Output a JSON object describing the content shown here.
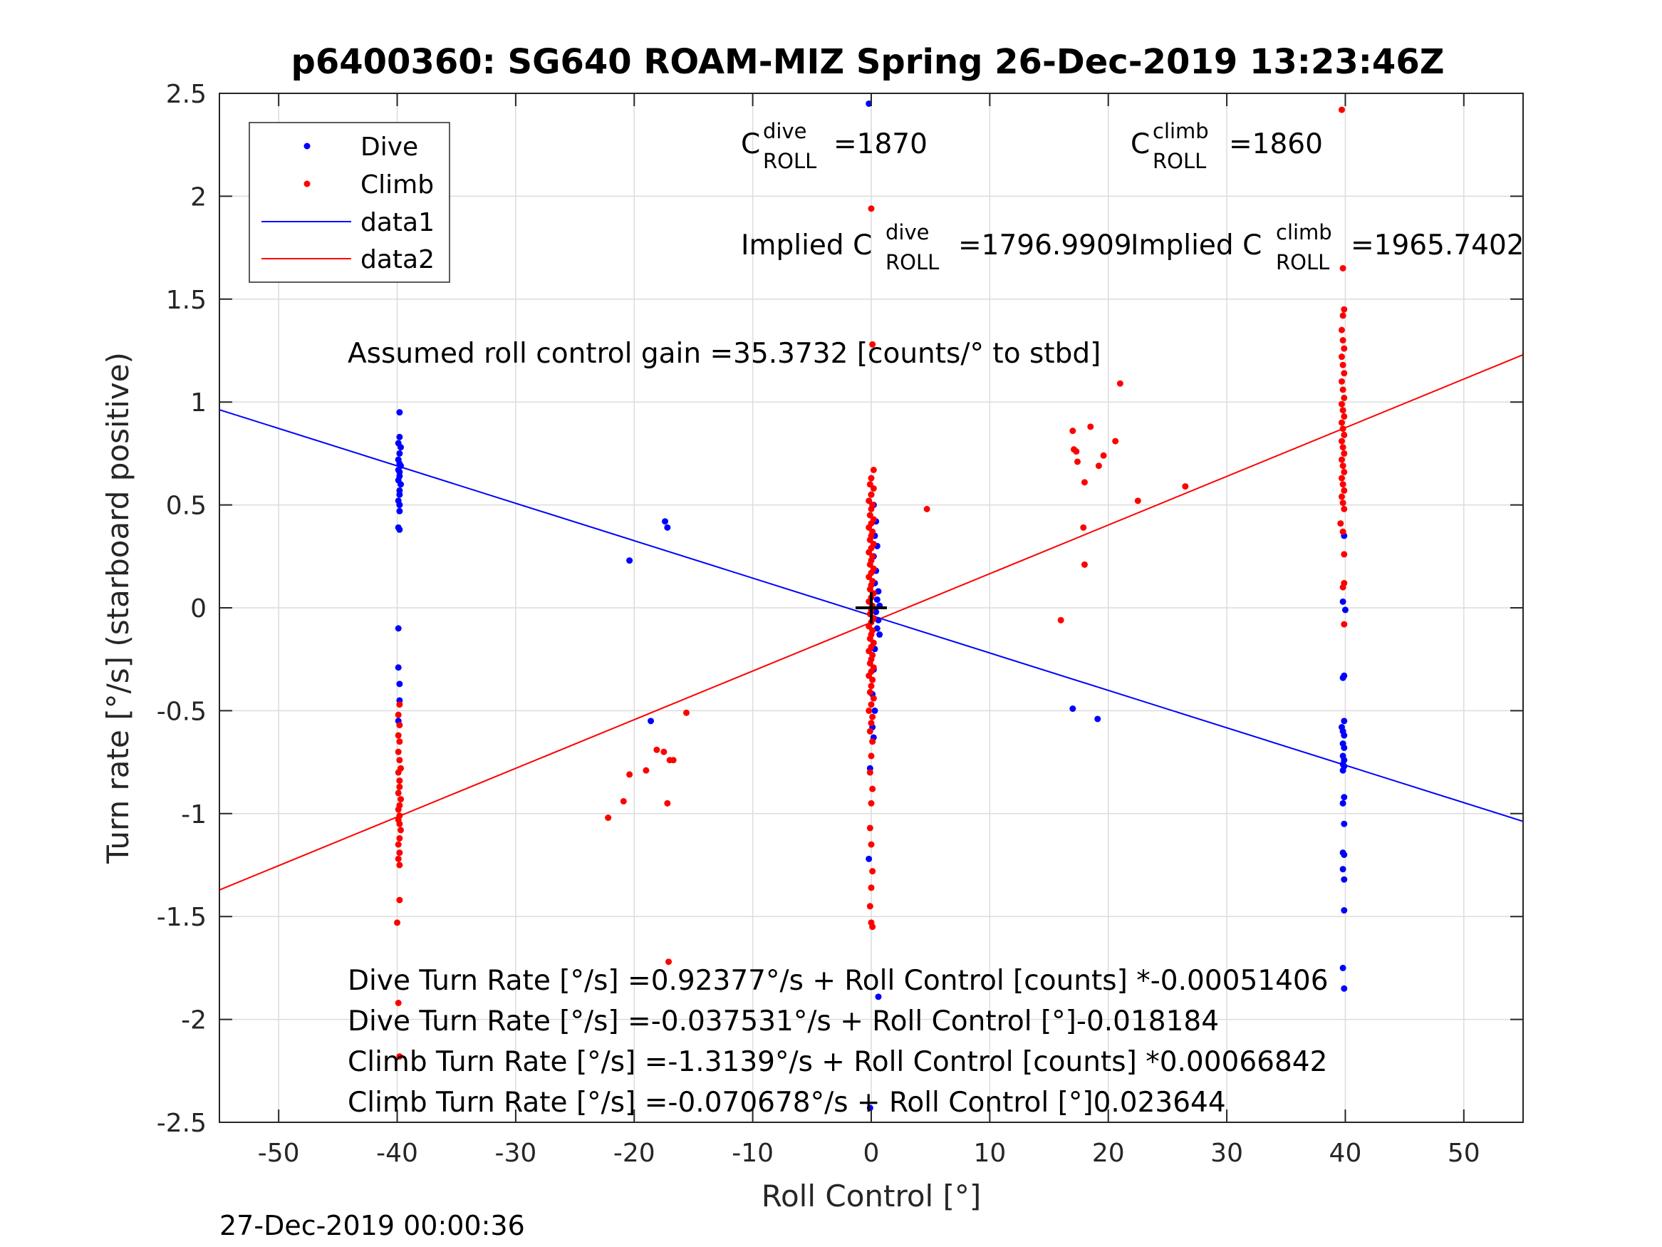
{
  "title": "p6400360: SG640 ROAM-MIZ Spring 26-Dec-2019 13:23:46Z",
  "footer_timestamp": "27-Dec-2019 00:00:36",
  "colors": {
    "dive": "#0000ff",
    "climb": "#ff0000",
    "grid": "#dcdcdc",
    "axis": "#262626",
    "center_mark": "#000000"
  },
  "annotations": {
    "c_dive": {
      "base": "C",
      "sup": "dive",
      "sub": "ROLL",
      "value": "=1870"
    },
    "c_climb": {
      "base": "C",
      "sup": "climb",
      "sub": "ROLL",
      "value": "=1860"
    },
    "implied_dive": {
      "prefix": "Implied C",
      "sup": "dive",
      "sub": "ROLL",
      "value": "=1796.9909"
    },
    "implied_climb": {
      "prefix": "Implied C",
      "sup": "climb",
      "sub": "ROLL",
      "value": "=1965.7402"
    },
    "gain": "Assumed roll control gain =35.3732 [counts/° to stbd]",
    "fit_lines": [
      "Dive Turn Rate [°/s] =0.92377°/s + Roll Control [counts] *-0.00051406",
      "Dive Turn Rate [°/s] =-0.037531°/s + Roll Control [°]-0.018184",
      "Climb Turn Rate [°/s] =-1.3139°/s + Roll Control [counts] *0.00066842",
      "Climb Turn Rate [°/s] =-0.070678°/s + Roll Control [°]0.023644"
    ]
  },
  "chart_data": {
    "type": "scatter",
    "title": "p6400360: SG640 ROAM-MIZ Spring 26-Dec-2019 13:23:46Z",
    "xlabel": "Roll Control [°]",
    "ylabel": "Turn rate [°/s] (starboard positive)",
    "xlim": [
      -55,
      55
    ],
    "ylim": [
      -2.5,
      2.5
    ],
    "xticks": [
      -50,
      -40,
      -30,
      -20,
      -10,
      0,
      10,
      20,
      30,
      40,
      50
    ],
    "yticks": [
      -2.5,
      -2,
      -1.5,
      -1,
      -0.5,
      0,
      0.5,
      1,
      1.5,
      2,
      2.5
    ],
    "grid": true,
    "legend_position": "top-left",
    "series": [
      {
        "name": "Dive",
        "kind": "points",
        "points": [
          [
            -39.8,
            0.95
          ],
          [
            -39.8,
            0.83
          ],
          [
            -39.9,
            0.8
          ],
          [
            -39.7,
            0.78
          ],
          [
            -39.8,
            0.75
          ],
          [
            -39.9,
            0.72
          ],
          [
            -39.8,
            0.7
          ],
          [
            -39.7,
            0.69
          ],
          [
            -39.9,
            0.67
          ],
          [
            -39.8,
            0.66
          ],
          [
            -39.8,
            0.64
          ],
          [
            -39.9,
            0.62
          ],
          [
            -39.7,
            0.6
          ],
          [
            -39.8,
            0.57
          ],
          [
            -39.8,
            0.55
          ],
          [
            -39.9,
            0.52
          ],
          [
            -39.8,
            0.5
          ],
          [
            -39.8,
            0.47
          ],
          [
            -39.9,
            0.39
          ],
          [
            -39.8,
            0.38
          ],
          [
            -39.9,
            -0.1
          ],
          [
            -39.9,
            -0.29
          ],
          [
            -39.8,
            -0.37
          ],
          [
            -39.8,
            -0.45
          ],
          [
            -39.9,
            -0.55
          ],
          [
            -20.4,
            0.23
          ],
          [
            -17.4,
            0.42
          ],
          [
            -17.2,
            0.39
          ],
          [
            -18.6,
            -0.55
          ],
          [
            17.0,
            -0.49
          ],
          [
            19.1,
            -0.54
          ],
          [
            -0.2,
            2.45
          ],
          [
            0.0,
            0.55
          ],
          [
            0.2,
            0.5
          ],
          [
            0.4,
            0.42
          ],
          [
            0.3,
            0.35
          ],
          [
            0.5,
            0.3
          ],
          [
            0.2,
            0.25
          ],
          [
            0.4,
            0.18
          ],
          [
            0.3,
            0.12
          ],
          [
            0.6,
            0.08
          ],
          [
            0.5,
            0.04
          ],
          [
            0.7,
            0.01
          ],
          [
            0.4,
            -0.02
          ],
          [
            0.6,
            -0.06
          ],
          [
            0.5,
            -0.1
          ],
          [
            0.7,
            -0.13
          ],
          [
            0.3,
            -0.2
          ],
          [
            0.2,
            -0.3
          ],
          [
            0.1,
            -0.42
          ],
          [
            0.3,
            -0.5
          ],
          [
            0.1,
            -0.58
          ],
          [
            0.2,
            -0.63
          ],
          [
            -0.1,
            -0.78
          ],
          [
            -0.2,
            -1.22
          ],
          [
            0.6,
            -1.89
          ],
          [
            -0.1,
            -2.43
          ],
          [
            39.9,
            0.35
          ],
          [
            39.8,
            0.03
          ],
          [
            40.0,
            -0.01
          ],
          [
            39.9,
            -0.33
          ],
          [
            39.8,
            -0.34
          ],
          [
            39.9,
            -0.55
          ],
          [
            39.7,
            -0.58
          ],
          [
            39.8,
            -0.6
          ],
          [
            39.9,
            -0.62
          ],
          [
            39.8,
            -0.66
          ],
          [
            39.9,
            -0.68
          ],
          [
            39.8,
            -0.72
          ],
          [
            39.9,
            -0.74
          ],
          [
            39.8,
            -0.76
          ],
          [
            39.9,
            -0.77
          ],
          [
            39.8,
            -0.79
          ],
          [
            39.9,
            -0.92
          ],
          [
            39.8,
            -0.95
          ],
          [
            39.9,
            -1.05
          ],
          [
            39.8,
            -1.19
          ],
          [
            39.9,
            -1.2
          ],
          [
            39.8,
            -1.27
          ],
          [
            39.9,
            -1.32
          ],
          [
            39.9,
            -1.47
          ],
          [
            39.8,
            -1.75
          ],
          [
            39.9,
            -1.85
          ]
        ]
      },
      {
        "name": "Climb",
        "kind": "points",
        "points": [
          [
            -39.8,
            -0.47
          ],
          [
            -39.9,
            -0.52
          ],
          [
            -39.8,
            -0.57
          ],
          [
            -39.9,
            -0.62
          ],
          [
            -39.8,
            -0.65
          ],
          [
            -39.9,
            -0.7
          ],
          [
            -39.8,
            -0.74
          ],
          [
            -39.7,
            -0.78
          ],
          [
            -39.9,
            -0.8
          ],
          [
            -39.8,
            -0.84
          ],
          [
            -39.8,
            -0.87
          ],
          [
            -39.9,
            -0.9
          ],
          [
            -39.7,
            -0.93
          ],
          [
            -39.8,
            -0.96
          ],
          [
            -39.9,
            -0.98
          ],
          [
            -39.8,
            -1.01
          ],
          [
            -39.9,
            -1.03
          ],
          [
            -39.8,
            -1.05
          ],
          [
            -39.7,
            -1.08
          ],
          [
            -39.8,
            -1.12
          ],
          [
            -39.9,
            -1.15
          ],
          [
            -39.8,
            -1.19
          ],
          [
            -39.9,
            -1.22
          ],
          [
            -39.8,
            -1.25
          ],
          [
            -39.8,
            -1.42
          ],
          [
            -40.0,
            -1.53
          ],
          [
            -39.9,
            -1.92
          ],
          [
            -39.8,
            -2.18
          ],
          [
            -22.2,
            -1.02
          ],
          [
            -20.9,
            -0.94
          ],
          [
            -20.4,
            -0.81
          ],
          [
            -19.0,
            -0.79
          ],
          [
            -18.1,
            -0.69
          ],
          [
            -17.5,
            -0.7
          ],
          [
            -17.0,
            -0.74
          ],
          [
            -17.2,
            -0.95
          ],
          [
            -16.7,
            -0.74
          ],
          [
            -15.6,
            -0.51
          ],
          [
            -17.1,
            -1.72
          ],
          [
            4.7,
            0.48
          ],
          [
            16.0,
            -0.06
          ],
          [
            17.0,
            0.86
          ],
          [
            17.1,
            0.77
          ],
          [
            17.3,
            0.76
          ],
          [
            17.4,
            0.71
          ],
          [
            17.9,
            0.39
          ],
          [
            18.0,
            0.21
          ],
          [
            18.0,
            0.61
          ],
          [
            18.5,
            0.88
          ],
          [
            19.2,
            0.69
          ],
          [
            19.6,
            0.74
          ],
          [
            20.6,
            0.81
          ],
          [
            21.0,
            1.09
          ],
          [
            22.5,
            0.52
          ],
          [
            26.5,
            0.59
          ],
          [
            0.0,
            1.94
          ],
          [
            0.1,
            1.28
          ],
          [
            0.2,
            0.67
          ],
          [
            0.0,
            0.63
          ],
          [
            -0.1,
            0.6
          ],
          [
            0.2,
            0.58
          ],
          [
            0.0,
            0.55
          ],
          [
            -0.2,
            0.52
          ],
          [
            0.1,
            0.5
          ],
          [
            0.0,
            0.48
          ],
          [
            -0.1,
            0.45
          ],
          [
            0.2,
            0.43
          ],
          [
            0.0,
            0.41
          ],
          [
            -0.2,
            0.39
          ],
          [
            0.1,
            0.37
          ],
          [
            0.0,
            0.35
          ],
          [
            -0.1,
            0.33
          ],
          [
            0.2,
            0.31
          ],
          [
            0.0,
            0.29
          ],
          [
            -0.2,
            0.27
          ],
          [
            0.1,
            0.25
          ],
          [
            0.0,
            0.23
          ],
          [
            -0.1,
            0.21
          ],
          [
            0.2,
            0.19
          ],
          [
            0.0,
            0.17
          ],
          [
            -0.2,
            0.15
          ],
          [
            0.1,
            0.13
          ],
          [
            0.0,
            0.11
          ],
          [
            -0.1,
            0.09
          ],
          [
            0.2,
            0.07
          ],
          [
            0.0,
            0.05
          ],
          [
            -0.2,
            0.03
          ],
          [
            0.1,
            0.01
          ],
          [
            0.0,
            -0.01
          ],
          [
            -0.1,
            -0.03
          ],
          [
            0.2,
            -0.05
          ],
          [
            0.0,
            -0.07
          ],
          [
            -0.2,
            -0.09
          ],
          [
            0.1,
            -0.11
          ],
          [
            0.0,
            -0.13
          ],
          [
            -0.1,
            -0.15
          ],
          [
            0.2,
            -0.17
          ],
          [
            0.0,
            -0.19
          ],
          [
            -0.2,
            -0.21
          ],
          [
            0.1,
            -0.23
          ],
          [
            0.0,
            -0.25
          ],
          [
            -0.1,
            -0.27
          ],
          [
            0.2,
            -0.29
          ],
          [
            0.0,
            -0.31
          ],
          [
            -0.2,
            -0.33
          ],
          [
            0.1,
            -0.35
          ],
          [
            0.0,
            -0.38
          ],
          [
            -0.1,
            -0.41
          ],
          [
            0.2,
            -0.44
          ],
          [
            0.0,
            -0.47
          ],
          [
            -0.2,
            -0.5
          ],
          [
            0.1,
            -0.53
          ],
          [
            0.0,
            -0.56
          ],
          [
            -0.1,
            -0.6
          ],
          [
            0.1,
            -0.65
          ],
          [
            0.0,
            -0.72
          ],
          [
            -0.1,
            -0.8
          ],
          [
            0.1,
            -0.88
          ],
          [
            0.0,
            -0.95
          ],
          [
            -0.1,
            -1.07
          ],
          [
            0.0,
            -1.15
          ],
          [
            0.1,
            -1.28
          ],
          [
            0.0,
            -1.36
          ],
          [
            -0.1,
            -1.45
          ],
          [
            0.0,
            -1.53
          ],
          [
            0.1,
            -1.55
          ],
          [
            39.7,
            2.42
          ],
          [
            39.8,
            1.65
          ],
          [
            39.9,
            1.45
          ],
          [
            39.8,
            1.42
          ],
          [
            39.7,
            1.35
          ],
          [
            39.8,
            1.3
          ],
          [
            39.9,
            1.26
          ],
          [
            39.7,
            1.22
          ],
          [
            39.8,
            1.18
          ],
          [
            39.9,
            1.14
          ],
          [
            39.7,
            1.1
          ],
          [
            39.8,
            1.06
          ],
          [
            39.9,
            1.02
          ],
          [
            39.7,
            0.99
          ],
          [
            39.8,
            0.96
          ],
          [
            39.9,
            0.93
          ],
          [
            39.7,
            0.9
          ],
          [
            39.8,
            0.87
          ],
          [
            39.9,
            0.84
          ],
          [
            39.7,
            0.81
          ],
          [
            39.8,
            0.78
          ],
          [
            39.9,
            0.75
          ],
          [
            39.7,
            0.72
          ],
          [
            39.8,
            0.69
          ],
          [
            39.9,
            0.66
          ],
          [
            39.7,
            0.63
          ],
          [
            39.8,
            0.6
          ],
          [
            39.9,
            0.57
          ],
          [
            39.7,
            0.54
          ],
          [
            39.8,
            0.51
          ],
          [
            39.9,
            0.48
          ],
          [
            39.6,
            0.41
          ],
          [
            39.8,
            0.37
          ],
          [
            39.9,
            0.26
          ],
          [
            39.9,
            0.12
          ],
          [
            39.8,
            0.1
          ],
          [
            39.9,
            -0.08
          ]
        ]
      },
      {
        "name": "data1",
        "kind": "line",
        "x": [
          -55,
          55
        ],
        "y": [
          0.9625,
          -1.0376
        ]
      },
      {
        "name": "data2",
        "kind": "line",
        "x": [
          -55,
          55
        ],
        "y": [
          -1.3711,
          1.2298
        ]
      }
    ],
    "center_marker": {
      "x": 0,
      "y": 0,
      "symbol": "+"
    }
  }
}
